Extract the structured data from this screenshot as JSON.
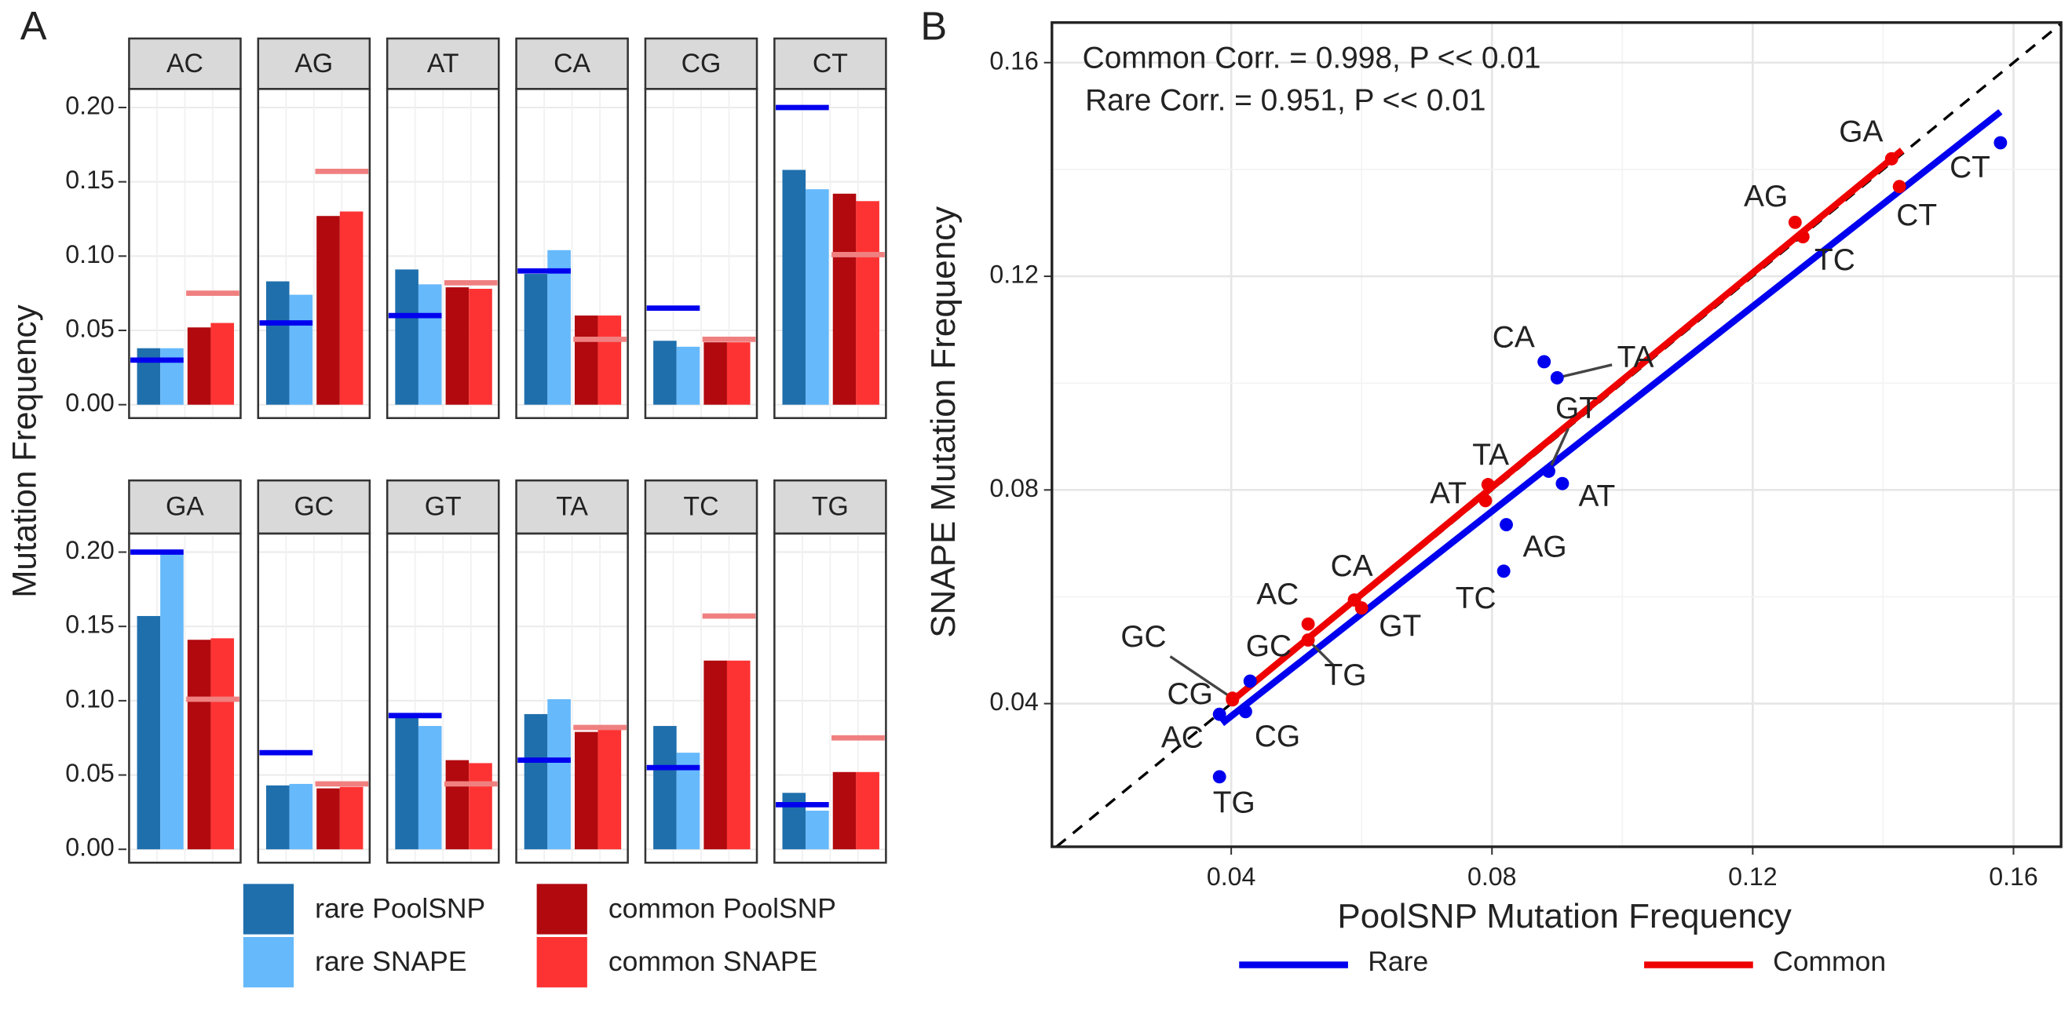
{
  "chart_data": [
    {
      "type": "faceted-bar",
      "panel_label": "A",
      "y_label": "Mutation Frequency",
      "categories": [
        "AC",
        "AG",
        "AT",
        "CA",
        "CG",
        "CT",
        "GA",
        "GC",
        "GT",
        "TA",
        "TC",
        "TG"
      ],
      "series": [
        {
          "name": "rare PoolSNP",
          "color": "#1f6fad",
          "values": [
            0.038,
            0.083,
            0.091,
            0.088,
            0.043,
            0.158,
            0.157,
            0.043,
            0.091,
            0.091,
            0.083,
            0.038
          ]
        },
        {
          "name": "rare SNAPE",
          "color": "#66b9fb",
          "values": [
            0.038,
            0.074,
            0.081,
            0.104,
            0.039,
            0.145,
            0.2,
            0.044,
            0.083,
            0.101,
            0.065,
            0.026
          ]
        },
        {
          "name": "common PoolSNP",
          "color": "#b1090e",
          "values": [
            0.052,
            0.127,
            0.079,
            0.06,
            0.042,
            0.142,
            0.141,
            0.041,
            0.06,
            0.079,
            0.127,
            0.052
          ]
        },
        {
          "name": "common SNAPE",
          "color": "#fd3333",
          "values": [
            0.055,
            0.13,
            0.078,
            0.06,
            0.042,
            0.137,
            0.142,
            0.042,
            0.058,
            0.081,
            0.127,
            0.052
          ]
        }
      ],
      "reference_lines": [
        {
          "color": "#0000ee",
          "values": [
            0.03,
            0.055,
            0.06,
            0.09,
            0.065,
            0.2,
            0.2,
            0.065,
            0.09,
            0.06,
            0.055,
            0.03
          ]
        },
        {
          "color": "#f08080",
          "values": [
            0.075,
            0.157,
            0.082,
            0.044,
            0.044,
            0.101,
            0.101,
            0.044,
            0.044,
            0.082,
            0.157,
            0.075
          ]
        }
      ],
      "ylim": [
        -0.009,
        0.2125
      ],
      "yticks": [
        {
          "value": 0,
          "label": "0.00"
        },
        0.05,
        {
          "value": 0.1,
          "label": "0.10"
        },
        0.15,
        {
          "value": 0.2,
          "label": "0.20"
        }
      ],
      "grid": true
    },
    {
      "type": "scatter",
      "panel_label": "B",
      "x_label": "PoolSNP Mutation Frequency",
      "y_label": "SNAPE Mutation Frequency",
      "annotations": [
        {
          "text": "Common Corr. = 0.998, P << 0.01",
          "color": "#ee0000"
        },
        {
          "text": "Rare Corr. = 0.951, P << 0.01",
          "color": "#0000ee"
        }
      ],
      "series": [
        {
          "name": "Rare",
          "color": "#0000ee",
          "labels": [
            "AC",
            "AG",
            "AT",
            "CA",
            "CG",
            "CT",
            "GC",
            "GT",
            "TA",
            "TC",
            "TG"
          ],
          "x": [
            0.0382,
            0.0822,
            0.0908,
            0.088,
            0.0422,
            0.158,
            0.0429,
            0.0887,
            0.09,
            0.0818,
            0.0382
          ],
          "values": [
            0.038,
            0.0735,
            0.0812,
            0.104,
            0.0385,
            0.145,
            0.0442,
            0.0835,
            0.101,
            0.0648,
            0.0263
          ],
          "fit": {
            "x": [
              0.0386,
              0.158
            ],
            "values": [
              0.0363,
              0.1508
            ]
          }
        },
        {
          "name": "Common",
          "color": "#ee0000",
          "labels": [
            "AC",
            "AG",
            "AT",
            "CA",
            "CG",
            "CT",
            "GA",
            "GC",
            "GT",
            "TA",
            "TC",
            "TG"
          ],
          "x": [
            0.0518,
            0.1265,
            0.079,
            0.0589,
            0.0402,
            0.1425,
            0.1413,
            0.0402,
            0.06,
            0.0794,
            0.1277,
            0.0518
          ],
          "values": [
            0.0549,
            0.1301,
            0.078,
            0.0594,
            0.0407,
            0.1368,
            0.142,
            0.041,
            0.0579,
            0.081,
            0.1274,
            0.0519
          ],
          "fit": {
            "x": [
              0.0396,
              0.1429
            ],
            "values": [
              0.04,
              0.1436
            ]
          }
        }
      ],
      "xlim": [
        0.0125,
        0.1673
      ],
      "ylim": [
        0.0132,
        0.1675
      ],
      "xticks": [
        0.04,
        0.08,
        0.12,
        0.16
      ],
      "yticks": [
        0.04,
        0.08,
        0.12,
        0.16
      ],
      "grid": true
    }
  ]
}
